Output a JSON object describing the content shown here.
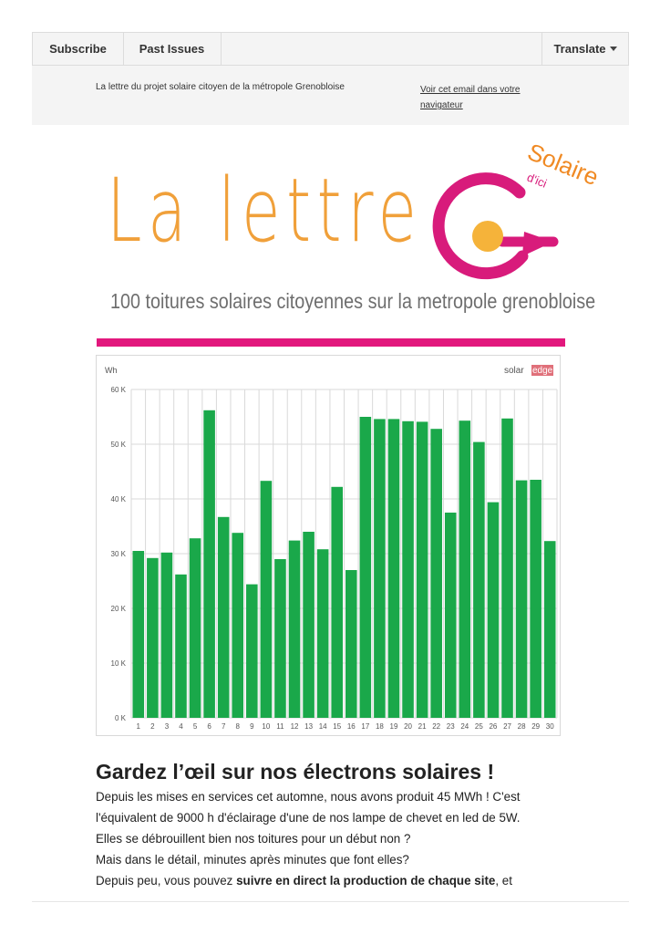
{
  "nav": {
    "subscribe_label": "Subscribe",
    "past_issues_label": "Past Issues",
    "translate_label": "Translate"
  },
  "preheader": {
    "tagline": "La lettre du projet solaire citoyen de la métropole Grenobloise",
    "view_in_browser": "Voir cet email dans votre navigateur"
  },
  "logo": {
    "title": "La lettre",
    "brand_word1": "Solaire",
    "brand_word2": "d'ici",
    "subtitle": "100 toitures solaires citoyennes sur la metropole grenobloise",
    "colors": {
      "title": "#f0a03a",
      "ring": "#d81b7b",
      "sun": "#f5b33a",
      "pink_bar": "#e2187d"
    }
  },
  "chart_data": {
    "type": "bar",
    "unit_label": "Wh",
    "brand_label_1": "solar",
    "brand_label_2": "edge",
    "categories": [
      "1",
      "2",
      "3",
      "4",
      "5",
      "6",
      "7",
      "8",
      "9",
      "10",
      "11",
      "12",
      "13",
      "14",
      "15",
      "16",
      "17",
      "18",
      "19",
      "20",
      "21",
      "22",
      "23",
      "24",
      "25",
      "26",
      "27",
      "28",
      "29",
      "30"
    ],
    "values": [
      30500,
      29200,
      30200,
      26200,
      32800,
      56200,
      36700,
      33800,
      24400,
      43300,
      29000,
      32400,
      34000,
      30800,
      42200,
      27000,
      55000,
      54600,
      54600,
      54200,
      54100,
      52800,
      37500,
      54300,
      50400,
      39400,
      54700,
      43400,
      43500,
      32300
    ],
    "y_ticks": [
      "0 K",
      "10 K",
      "20 K",
      "30 K",
      "40 K",
      "50 K",
      "60 K"
    ],
    "ylim": [
      0,
      60000
    ],
    "grid": true,
    "bar_color": "#1aa84a"
  },
  "article": {
    "heading": "Gardez l’œil sur nos électrons solaires !",
    "line1": "Depuis les mises en services cet automne, nous avons produit 45 MWh ! C'est",
    "line2": "l'équivalent de 9000 h d'éclairage d'une de nos lampe de chevet en led de 5W.",
    "line3": "Elles se débrouillent bien nos toitures pour un début non ?",
    "line4": "Mais dans le détail, minutes après minutes que font elles?",
    "line5_start": "Depuis peu, vous pouvez ",
    "line5_bold": "suivre en direct la production de chaque site",
    "line5_end": ", et"
  }
}
